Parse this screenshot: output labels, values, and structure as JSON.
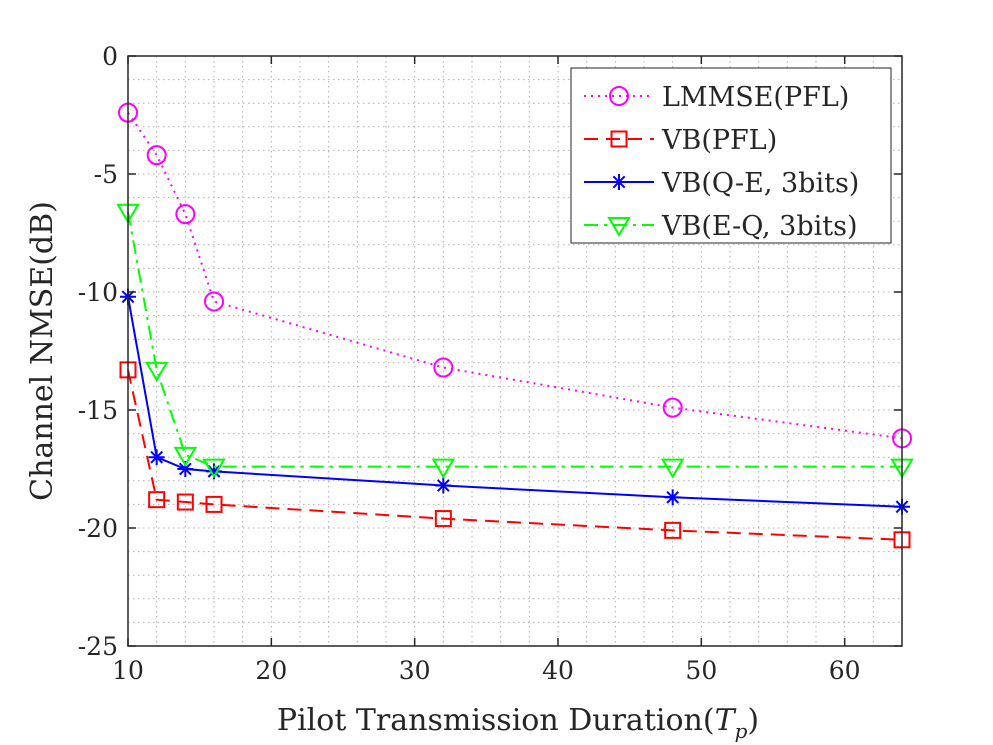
{
  "chart_data": {
    "type": "line",
    "title": "",
    "xlabel": "Pilot Transmission Duration(",
    "xlabel_symbol": "T",
    "xlabel_subscript": "p",
    "xlabel_close": ")",
    "ylabel": "Channel NMSE(dB)",
    "xlim": [
      10,
      64
    ],
    "ylim": [
      -25,
      0
    ],
    "xticks": [
      10,
      20,
      30,
      40,
      50,
      60
    ],
    "xtick_labels": [
      "10",
      "20",
      "30",
      "40",
      "50",
      "60"
    ],
    "yticks": [
      0,
      -5,
      -10,
      -15,
      -20,
      -25
    ],
    "ytick_labels": [
      "0",
      "-5",
      "-10",
      "-15",
      "-20",
      "-25"
    ],
    "grid": "dotted-minor",
    "legend_position": "top-right",
    "x": [
      10,
      12,
      14,
      16,
      32,
      48,
      64
    ],
    "series": [
      {
        "name": "LMMSE(PFL)",
        "color": "#ff00ff",
        "line_style": "dotted",
        "marker": "circle",
        "values": [
          -2.4,
          -4.2,
          -6.7,
          -10.4,
          -13.2,
          -14.9,
          -16.2
        ]
      },
      {
        "name": "VB(PFL)",
        "color": "#ff0000",
        "line_style": "dashed",
        "marker": "square",
        "values": [
          -13.3,
          -18.8,
          -18.9,
          -19.0,
          -19.6,
          -20.1,
          -20.5
        ]
      },
      {
        "name": "VB(Q-E, 3bits)",
        "color": "#0000ff",
        "line_style": "solid",
        "marker": "asterisk",
        "values": [
          -10.2,
          -17.0,
          -17.5,
          -17.6,
          -18.2,
          -18.7,
          -19.1
        ]
      },
      {
        "name": "VB(E-Q, 3bits)",
        "color": "#00ff00",
        "line_style": "dashdot",
        "marker": "triangle-down",
        "values": [
          -6.6,
          -13.3,
          -16.9,
          -17.4,
          -17.4,
          -17.4,
          -17.4
        ]
      }
    ]
  }
}
